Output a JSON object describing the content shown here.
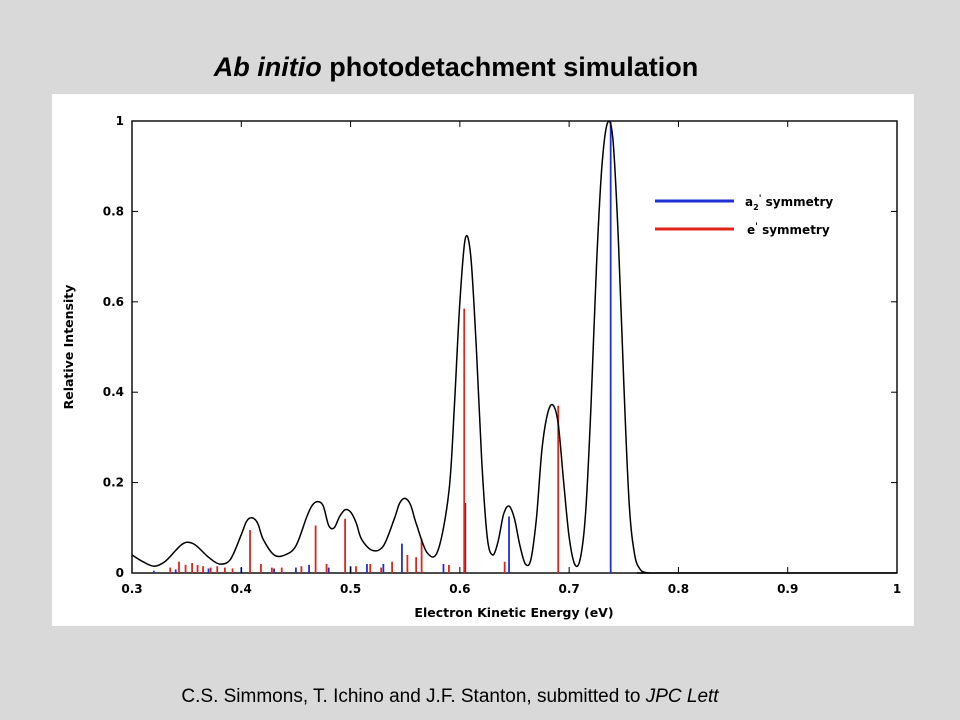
{
  "slide": {
    "title_italic": "Ab initio",
    "title_rest": " photodetachment simulation",
    "citation_main": "C.S. Simmons, T. Ichino and J.F. Stanton, submitted to ",
    "citation_italic": "JPC Lett"
  },
  "chart_data": {
    "type": "line",
    "title": "Ab initio photodetachment simulation",
    "xlabel": "Electron Kinetic Energy (eV)",
    "ylabel": "Relative Intensity",
    "xlim": [
      0.3,
      1.0
    ],
    "ylim": [
      0,
      1
    ],
    "xticks": [
      "0.3",
      "0.4",
      "0.5",
      "0.6",
      "0.7",
      "0.8",
      "0.9",
      "1"
    ],
    "yticks": [
      "0",
      "0.2",
      "0.4",
      "0.6",
      "0.8",
      "1"
    ],
    "grid": false,
    "legend_position": "top-right",
    "colors": {
      "envelope": "#000000",
      "a2_prime": "#1f2fd6",
      "e_prime": "#e2231a"
    },
    "series": [
      {
        "name": "envelope",
        "kind": "line",
        "x": [
          0.3,
          0.31,
          0.32,
          0.33,
          0.34,
          0.345,
          0.35,
          0.355,
          0.36,
          0.37,
          0.38,
          0.39,
          0.4,
          0.405,
          0.41,
          0.415,
          0.42,
          0.43,
          0.44,
          0.45,
          0.46,
          0.465,
          0.47,
          0.475,
          0.48,
          0.485,
          0.49,
          0.495,
          0.5,
          0.505,
          0.51,
          0.52,
          0.53,
          0.54,
          0.545,
          0.55,
          0.555,
          0.56,
          0.57,
          0.58,
          0.59,
          0.595,
          0.6,
          0.605,
          0.61,
          0.615,
          0.62,
          0.625,
          0.63,
          0.635,
          0.64,
          0.645,
          0.65,
          0.655,
          0.66,
          0.665,
          0.67,
          0.675,
          0.68,
          0.685,
          0.69,
          0.695,
          0.7,
          0.705,
          0.71,
          0.715,
          0.72,
          0.725,
          0.73,
          0.735,
          0.74,
          0.745,
          0.75,
          0.755,
          0.76,
          0.765,
          0.77,
          0.775,
          0.78,
          1.0
        ],
        "y": [
          0.04,
          0.025,
          0.015,
          0.025,
          0.05,
          0.062,
          0.068,
          0.066,
          0.058,
          0.035,
          0.02,
          0.03,
          0.085,
          0.115,
          0.122,
          0.11,
          0.075,
          0.04,
          0.04,
          0.06,
          0.125,
          0.15,
          0.158,
          0.148,
          0.105,
          0.1,
          0.125,
          0.14,
          0.135,
          0.112,
          0.075,
          0.05,
          0.06,
          0.12,
          0.155,
          0.165,
          0.15,
          0.11,
          0.045,
          0.05,
          0.18,
          0.37,
          0.6,
          0.74,
          0.7,
          0.5,
          0.25,
          0.08,
          0.04,
          0.07,
          0.13,
          0.148,
          0.12,
          0.06,
          0.02,
          0.03,
          0.12,
          0.27,
          0.35,
          0.372,
          0.33,
          0.2,
          0.08,
          0.02,
          0.03,
          0.13,
          0.37,
          0.68,
          0.9,
          0.995,
          0.96,
          0.74,
          0.42,
          0.15,
          0.04,
          0.008,
          0.001,
          0,
          0,
          0
        ]
      },
      {
        "name": "a2' symmetry",
        "kind": "stick",
        "x": [
          0.32,
          0.34,
          0.37,
          0.4,
          0.43,
          0.45,
          0.462,
          0.48,
          0.5,
          0.515,
          0.53,
          0.547,
          0.585,
          0.605,
          0.645,
          0.738
        ],
        "y": [
          0.005,
          0.008,
          0.01,
          0.012,
          0.01,
          0.012,
          0.018,
          0.012,
          0.015,
          0.02,
          0.02,
          0.065,
          0.02,
          0.155,
          0.125,
          1.0
        ]
      },
      {
        "name": "e' symmetry",
        "kind": "stick",
        "x": [
          0.335,
          0.343,
          0.349,
          0.355,
          0.36,
          0.365,
          0.372,
          0.378,
          0.385,
          0.392,
          0.408,
          0.418,
          0.428,
          0.437,
          0.455,
          0.468,
          0.478,
          0.495,
          0.505,
          0.518,
          0.528,
          0.538,
          0.552,
          0.56,
          0.565,
          0.59,
          0.604,
          0.641,
          0.69
        ],
        "y": [
          0.012,
          0.025,
          0.018,
          0.022,
          0.018,
          0.015,
          0.012,
          0.015,
          0.012,
          0.01,
          0.095,
          0.02,
          0.012,
          0.012,
          0.015,
          0.105,
          0.02,
          0.12,
          0.015,
          0.02,
          0.012,
          0.025,
          0.04,
          0.035,
          0.075,
          0.018,
          0.585,
          0.025,
          0.37
        ]
      }
    ],
    "legend": [
      {
        "text_base": "a",
        "text_sub": "2",
        "text_prime": "'",
        "text_rest": " symmetry",
        "color_key": "a2_prime"
      },
      {
        "text_base": "e",
        "text_sub": "",
        "text_prime": "'",
        "text_rest": " symmetry",
        "color_key": "e_prime"
      }
    ]
  }
}
